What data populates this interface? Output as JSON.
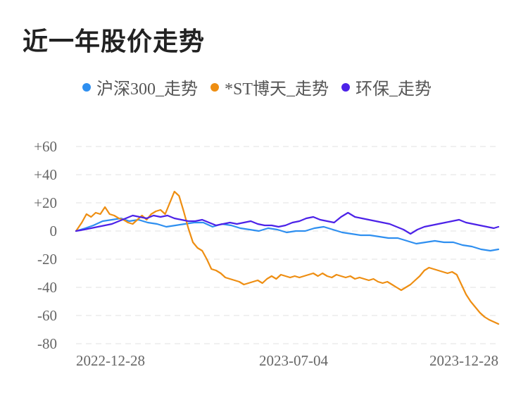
{
  "title": "近一年股价走势",
  "chart_data": {
    "type": "line",
    "y_ticks": [
      "+60",
      "+40",
      "+20",
      "0",
      "-20",
      "-40",
      "-60",
      "-80"
    ],
    "y_tick_values": [
      60,
      40,
      20,
      0,
      -20,
      -40,
      -60,
      -80
    ],
    "ylim": [
      -80,
      60
    ],
    "x_tick_labels": [
      "2022-12-28",
      "2023-07-04",
      "2023-12-28"
    ],
    "x_range": [
      "2022-12-28",
      "2023-12-28"
    ],
    "grid": true,
    "legend": "top",
    "series": [
      {
        "name": "沪深300_走势",
        "color": "#2e8ff0",
        "points": [
          [
            "2022-12-28",
            0
          ],
          [
            "2023-01-05",
            2
          ],
          [
            "2023-01-12",
            4
          ],
          [
            "2023-01-20",
            7
          ],
          [
            "2023-01-28",
            8
          ],
          [
            "2023-02-05",
            9
          ],
          [
            "2023-02-12",
            7
          ],
          [
            "2023-02-20",
            8
          ],
          [
            "2023-02-28",
            6
          ],
          [
            "2023-03-08",
            5
          ],
          [
            "2023-03-16",
            3
          ],
          [
            "2023-03-24",
            4
          ],
          [
            "2023-04-01",
            5
          ],
          [
            "2023-04-09",
            6
          ],
          [
            "2023-04-17",
            6
          ],
          [
            "2023-04-25",
            3
          ],
          [
            "2023-05-03",
            5
          ],
          [
            "2023-05-11",
            4
          ],
          [
            "2023-05-19",
            2
          ],
          [
            "2023-05-27",
            1
          ],
          [
            "2023-06-04",
            0
          ],
          [
            "2023-06-12",
            2
          ],
          [
            "2023-06-20",
            1
          ],
          [
            "2023-06-28",
            -1
          ],
          [
            "2023-07-06",
            0
          ],
          [
            "2023-07-14",
            0
          ],
          [
            "2023-07-22",
            2
          ],
          [
            "2023-07-30",
            3
          ],
          [
            "2023-08-07",
            1
          ],
          [
            "2023-08-15",
            -1
          ],
          [
            "2023-08-23",
            -2
          ],
          [
            "2023-08-31",
            -3
          ],
          [
            "2023-09-08",
            -3
          ],
          [
            "2023-09-16",
            -4
          ],
          [
            "2023-09-24",
            -5
          ],
          [
            "2023-10-02",
            -5
          ],
          [
            "2023-10-10",
            -7
          ],
          [
            "2023-10-18",
            -9
          ],
          [
            "2023-10-26",
            -8
          ],
          [
            "2023-11-03",
            -7
          ],
          [
            "2023-11-11",
            -8
          ],
          [
            "2023-11-19",
            -8
          ],
          [
            "2023-11-27",
            -10
          ],
          [
            "2023-12-05",
            -11
          ],
          [
            "2023-12-13",
            -13
          ],
          [
            "2023-12-21",
            -14
          ],
          [
            "2023-12-28",
            -13
          ]
        ]
      },
      {
        "name": "*ST博天_走势",
        "color": "#ee8e12",
        "points": [
          [
            "2022-12-28",
            0
          ],
          [
            "2023-01-02",
            6
          ],
          [
            "2023-01-06",
            12
          ],
          [
            "2023-01-10",
            10
          ],
          [
            "2023-01-14",
            13
          ],
          [
            "2023-01-18",
            12
          ],
          [
            "2023-01-22",
            17
          ],
          [
            "2023-01-26",
            12
          ],
          [
            "2023-01-30",
            11
          ],
          [
            "2023-02-03",
            9
          ],
          [
            "2023-02-07",
            8
          ],
          [
            "2023-02-11",
            6
          ],
          [
            "2023-02-15",
            5
          ],
          [
            "2023-02-19",
            8
          ],
          [
            "2023-02-23",
            11
          ],
          [
            "2023-02-27",
            8
          ],
          [
            "2023-03-03",
            12
          ],
          [
            "2023-03-07",
            14
          ],
          [
            "2023-03-11",
            15
          ],
          [
            "2023-03-15",
            12
          ],
          [
            "2023-03-19",
            20
          ],
          [
            "2023-03-23",
            28
          ],
          [
            "2023-03-27",
            25
          ],
          [
            "2023-03-31",
            14
          ],
          [
            "2023-04-04",
            2
          ],
          [
            "2023-04-08",
            -8
          ],
          [
            "2023-04-12",
            -12
          ],
          [
            "2023-04-16",
            -14
          ],
          [
            "2023-04-20",
            -20
          ],
          [
            "2023-04-24",
            -27
          ],
          [
            "2023-04-28",
            -28
          ],
          [
            "2023-05-02",
            -30
          ],
          [
            "2023-05-06",
            -33
          ],
          [
            "2023-05-10",
            -34
          ],
          [
            "2023-05-14",
            -35
          ],
          [
            "2023-05-18",
            -36
          ],
          [
            "2023-05-22",
            -38
          ],
          [
            "2023-05-26",
            -37
          ],
          [
            "2023-05-30",
            -36
          ],
          [
            "2023-06-03",
            -35
          ],
          [
            "2023-06-07",
            -37
          ],
          [
            "2023-06-11",
            -34
          ],
          [
            "2023-06-15",
            -32
          ],
          [
            "2023-06-19",
            -34
          ],
          [
            "2023-06-23",
            -31
          ],
          [
            "2023-06-27",
            -32
          ],
          [
            "2023-07-01",
            -33
          ],
          [
            "2023-07-05",
            -32
          ],
          [
            "2023-07-09",
            -33
          ],
          [
            "2023-07-13",
            -32
          ],
          [
            "2023-07-17",
            -31
          ],
          [
            "2023-07-21",
            -30
          ],
          [
            "2023-07-25",
            -32
          ],
          [
            "2023-07-29",
            -30
          ],
          [
            "2023-08-02",
            -32
          ],
          [
            "2023-08-06",
            -33
          ],
          [
            "2023-08-10",
            -31
          ],
          [
            "2023-08-14",
            -32
          ],
          [
            "2023-08-18",
            -33
          ],
          [
            "2023-08-22",
            -32
          ],
          [
            "2023-08-26",
            -34
          ],
          [
            "2023-08-30",
            -33
          ],
          [
            "2023-09-03",
            -34
          ],
          [
            "2023-09-07",
            -35
          ],
          [
            "2023-09-11",
            -34
          ],
          [
            "2023-09-15",
            -36
          ],
          [
            "2023-09-19",
            -37
          ],
          [
            "2023-09-23",
            -36
          ],
          [
            "2023-09-27",
            -38
          ],
          [
            "2023-10-01",
            -40
          ],
          [
            "2023-10-05",
            -42
          ],
          [
            "2023-10-09",
            -40
          ],
          [
            "2023-10-13",
            -38
          ],
          [
            "2023-10-17",
            -35
          ],
          [
            "2023-10-21",
            -32
          ],
          [
            "2023-10-25",
            -28
          ],
          [
            "2023-10-29",
            -26
          ],
          [
            "2023-11-02",
            -27
          ],
          [
            "2023-11-06",
            -28
          ],
          [
            "2023-11-10",
            -29
          ],
          [
            "2023-11-14",
            -30
          ],
          [
            "2023-11-18",
            -29
          ],
          [
            "2023-11-22",
            -31
          ],
          [
            "2023-11-26",
            -38
          ],
          [
            "2023-11-30",
            -45
          ],
          [
            "2023-12-04",
            -50
          ],
          [
            "2023-12-08",
            -54
          ],
          [
            "2023-12-12",
            -58
          ],
          [
            "2023-12-16",
            -61
          ],
          [
            "2023-12-20",
            -63
          ],
          [
            "2023-12-28",
            -66
          ]
        ]
      },
      {
        "name": "环保_走势",
        "color": "#4c22e8",
        "points": [
          [
            "2022-12-28",
            0
          ],
          [
            "2023-01-04",
            1
          ],
          [
            "2023-01-10",
            2
          ],
          [
            "2023-01-16",
            3
          ],
          [
            "2023-01-22",
            4
          ],
          [
            "2023-01-28",
            5
          ],
          [
            "2023-02-03",
            7
          ],
          [
            "2023-02-09",
            9
          ],
          [
            "2023-02-15",
            11
          ],
          [
            "2023-02-21",
            10
          ],
          [
            "2023-02-27",
            9
          ],
          [
            "2023-03-05",
            11
          ],
          [
            "2023-03-11",
            10
          ],
          [
            "2023-03-17",
            11
          ],
          [
            "2023-03-23",
            9
          ],
          [
            "2023-03-29",
            8
          ],
          [
            "2023-04-04",
            7
          ],
          [
            "2023-04-10",
            7
          ],
          [
            "2023-04-16",
            8
          ],
          [
            "2023-04-22",
            6
          ],
          [
            "2023-04-28",
            4
          ],
          [
            "2023-05-04",
            5
          ],
          [
            "2023-05-10",
            6
          ],
          [
            "2023-05-16",
            5
          ],
          [
            "2023-05-22",
            6
          ],
          [
            "2023-05-28",
            7
          ],
          [
            "2023-06-03",
            5
          ],
          [
            "2023-06-09",
            4
          ],
          [
            "2023-06-15",
            4
          ],
          [
            "2023-06-21",
            3
          ],
          [
            "2023-06-27",
            4
          ],
          [
            "2023-07-03",
            6
          ],
          [
            "2023-07-09",
            7
          ],
          [
            "2023-07-15",
            9
          ],
          [
            "2023-07-21",
            10
          ],
          [
            "2023-07-27",
            8
          ],
          [
            "2023-08-02",
            7
          ],
          [
            "2023-08-08",
            6
          ],
          [
            "2023-08-14",
            10
          ],
          [
            "2023-08-20",
            13
          ],
          [
            "2023-08-26",
            10
          ],
          [
            "2023-09-01",
            9
          ],
          [
            "2023-09-07",
            8
          ],
          [
            "2023-09-13",
            7
          ],
          [
            "2023-09-19",
            6
          ],
          [
            "2023-09-25",
            5
          ],
          [
            "2023-10-01",
            3
          ],
          [
            "2023-10-07",
            1
          ],
          [
            "2023-10-13",
            -2
          ],
          [
            "2023-10-19",
            1
          ],
          [
            "2023-10-25",
            3
          ],
          [
            "2023-10-31",
            4
          ],
          [
            "2023-11-06",
            5
          ],
          [
            "2023-11-12",
            6
          ],
          [
            "2023-11-18",
            7
          ],
          [
            "2023-11-24",
            8
          ],
          [
            "2023-11-30",
            6
          ],
          [
            "2023-12-06",
            5
          ],
          [
            "2023-12-12",
            4
          ],
          [
            "2023-12-18",
            3
          ],
          [
            "2023-12-24",
            2
          ],
          [
            "2023-12-28",
            3
          ]
        ]
      }
    ]
  }
}
